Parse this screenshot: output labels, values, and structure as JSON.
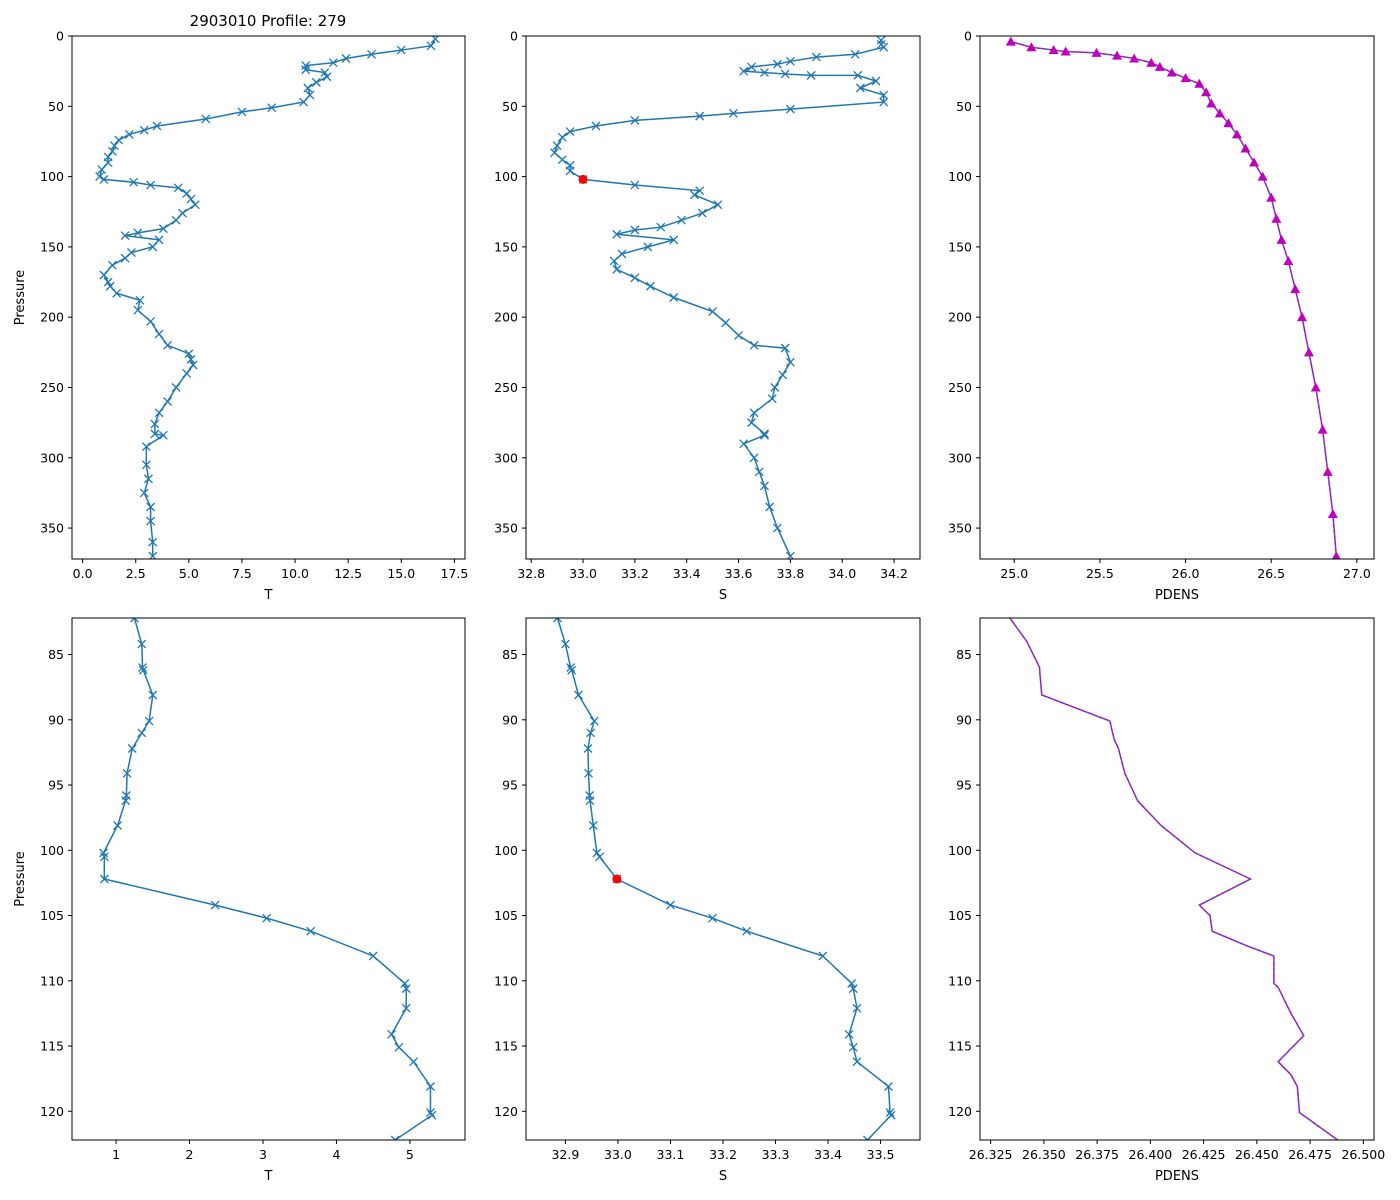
{
  "figure_title": "2903010 Profile: 279",
  "colors": {
    "series": "#1f77b4",
    "density": "#bf00bf",
    "highlight": "#ff0000",
    "density_dash": "#1f77b4"
  },
  "chart_data": [
    {
      "id": "top-temperature",
      "type": "line",
      "xlabel": "T",
      "ylabel": "Pressure",
      "xlim": [
        -0.5,
        18
      ],
      "ylim": [
        372,
        0
      ],
      "xticks": [
        0.0,
        2.5,
        5.0,
        7.5,
        10.0,
        12.5,
        15.0,
        17.5
      ],
      "xtick_labels": [
        "0.0",
        "2.5",
        "5.0",
        "7.5",
        "10.0",
        "12.5",
        "15.0",
        "17.5"
      ],
      "yticks": [
        0,
        50,
        100,
        150,
        200,
        250,
        300,
        350
      ],
      "ytick_labels": [
        "0",
        "50",
        "100",
        "150",
        "200",
        "250",
        "300",
        "350"
      ],
      "marker": "x",
      "x": [
        16.6,
        16.4,
        15.0,
        13.6,
        12.4,
        11.8,
        10.5,
        10.5,
        11.4,
        11.5,
        11.0,
        10.6,
        10.7,
        10.4,
        8.9,
        7.5,
        5.8,
        3.5,
        2.9,
        2.2,
        1.7,
        1.5,
        1.4,
        1.2,
        1.2,
        0.9,
        0.8,
        1.0,
        2.4,
        3.2,
        4.5,
        4.9,
        5.1,
        5.3,
        4.7,
        4.4,
        3.8,
        2.6,
        2.0,
        3.6,
        3.3,
        2.3,
        2.0,
        1.4,
        1.0,
        1.2,
        1.3,
        1.6,
        2.7,
        2.6,
        3.2,
        3.6,
        4.0,
        5.0,
        5.1,
        5.2,
        4.9,
        4.4,
        4.0,
        3.6,
        3.4,
        3.4,
        3.8,
        3.0,
        3.0,
        3.1,
        2.9,
        3.2,
        3.2,
        3.3,
        3.3
      ],
      "y": [
        2,
        7,
        10,
        13,
        16,
        19,
        21,
        24,
        26,
        29,
        33,
        37,
        42,
        47,
        51,
        54,
        59,
        64,
        67,
        70,
        74,
        78,
        82,
        86,
        90,
        95,
        100,
        102,
        104,
        106,
        108,
        112,
        116,
        120,
        126,
        131,
        137,
        140,
        142,
        145,
        150,
        154,
        158,
        163,
        170,
        175,
        178,
        183,
        188,
        195,
        203,
        212,
        220,
        226,
        230,
        234,
        240,
        250,
        260,
        268,
        276,
        283,
        284,
        292,
        305,
        315,
        325,
        335,
        345,
        360,
        370
      ]
    },
    {
      "id": "top-salinity",
      "type": "line",
      "xlabel": "S",
      "ylabel": "",
      "xlim": [
        32.78,
        34.3
      ],
      "ylim": [
        372,
        0
      ],
      "xticks": [
        32.8,
        33.0,
        33.2,
        33.4,
        33.6,
        33.8,
        34.0,
        34.2
      ],
      "xtick_labels": [
        "32.8",
        "33.0",
        "33.2",
        "33.4",
        "33.6",
        "33.8",
        "34.0",
        "34.2"
      ],
      "yticks": [
        0,
        50,
        100,
        150,
        200,
        250,
        300,
        350
      ],
      "ytick_labels": [
        "0",
        "50",
        "100",
        "150",
        "200",
        "250",
        "300",
        "350"
      ],
      "marker": "x",
      "x": [
        34.15,
        34.15,
        34.16,
        34.05,
        33.9,
        33.8,
        33.75,
        33.65,
        33.62,
        33.7,
        33.78,
        33.88,
        34.06,
        34.13,
        34.07,
        34.16,
        34.16,
        33.8,
        33.58,
        33.45,
        33.2,
        33.05,
        32.95,
        32.92,
        32.9,
        32.89,
        32.92,
        32.95,
        32.95,
        33.0,
        33.2,
        33.45,
        33.43,
        33.52,
        33.46,
        33.38,
        33.3,
        33.2,
        33.13,
        33.35,
        33.25,
        33.15,
        33.12,
        33.13,
        33.2,
        33.26,
        33.35,
        33.5,
        33.55,
        33.6,
        33.66,
        33.78,
        33.8,
        33.77,
        33.74,
        33.73,
        33.66,
        33.65,
        33.7,
        33.7,
        33.62,
        33.66,
        33.68,
        33.7,
        33.72,
        33.75,
        33.8
      ],
      "y": [
        3,
        6,
        8,
        13,
        15,
        18,
        20,
        22,
        25,
        26,
        27,
        28,
        28,
        32,
        37,
        42,
        47,
        52,
        55,
        57,
        60,
        64,
        68,
        72,
        78,
        83,
        88,
        92,
        96,
        102,
        106,
        110,
        113,
        120,
        126,
        131,
        136,
        138,
        141,
        145,
        150,
        155,
        160,
        166,
        172,
        178,
        186,
        196,
        204,
        213,
        220,
        222,
        232,
        241,
        250,
        258,
        268,
        275,
        283,
        284,
        290,
        300,
        310,
        320,
        335,
        350,
        370
      ],
      "highlight_point": {
        "x": 33.0,
        "y": 102
      }
    },
    {
      "id": "top-density",
      "type": "line",
      "xlabel": "PDENS",
      "ylabel": "",
      "xlim": [
        24.8,
        27.1
      ],
      "ylim": [
        372,
        0
      ],
      "xticks": [
        25.0,
        25.5,
        26.0,
        26.5,
        27.0
      ],
      "xtick_labels": [
        "25.0",
        "25.5",
        "26.0",
        "26.5",
        "27.0"
      ],
      "yticks": [
        0,
        50,
        100,
        150,
        200,
        250,
        300,
        350
      ],
      "ytick_labels": [
        "0",
        "50",
        "100",
        "150",
        "200",
        "250",
        "300",
        "350"
      ],
      "marker": "triangle",
      "x": [
        24.98,
        25.1,
        25.23,
        25.3,
        25.48,
        25.6,
        25.7,
        25.8,
        25.85,
        25.92,
        26.0,
        26.08,
        26.12,
        26.15,
        26.2,
        26.25,
        26.3,
        26.35,
        26.4,
        26.45,
        26.5,
        26.53,
        26.56,
        26.6,
        26.64,
        26.68,
        26.72,
        26.76,
        26.8,
        26.83,
        26.86,
        26.88
      ],
      "y": [
        4,
        8,
        10,
        11,
        12,
        14,
        16,
        19,
        22,
        26,
        30,
        34,
        40,
        48,
        55,
        62,
        70,
        80,
        90,
        100,
        115,
        130,
        145,
        160,
        180,
        200,
        225,
        250,
        280,
        310,
        340,
        370
      ]
    },
    {
      "id": "bottom-temperature",
      "type": "line",
      "xlabel": "T",
      "ylabel": "Pressure",
      "xlim": [
        0.4,
        5.75
      ],
      "ylim": [
        122.2,
        82.2
      ],
      "xticks": [
        1,
        2,
        3,
        4,
        5
      ],
      "xtick_labels": [
        "1",
        "2",
        "3",
        "4",
        "5"
      ],
      "yticks": [
        85,
        90,
        95,
        100,
        105,
        110,
        115,
        120
      ],
      "ytick_labels": [
        "85",
        "90",
        "95",
        "100",
        "105",
        "110",
        "115",
        "120"
      ],
      "marker": "x",
      "x": [
        1.25,
        1.35,
        1.36,
        1.37,
        1.5,
        1.45,
        1.35,
        1.22,
        1.15,
        1.14,
        1.13,
        1.02,
        0.83,
        0.84,
        0.84,
        2.35,
        3.05,
        3.65,
        4.5,
        4.93,
        4.95,
        4.95,
        4.75,
        4.85,
        5.05,
        5.28,
        5.28,
        5.3,
        4.8
      ],
      "y": [
        82.2,
        84.2,
        86.0,
        86.2,
        88.1,
        90.1,
        91.0,
        92.2,
        94.1,
        95.8,
        96.2,
        98.1,
        100.2,
        100.5,
        102.2,
        104.2,
        105.2,
        106.2,
        108.1,
        110.2,
        110.6,
        112.1,
        114.1,
        115.1,
        116.2,
        118.1,
        120.1,
        120.3,
        122.2
      ]
    },
    {
      "id": "bottom-salinity",
      "type": "line",
      "xlabel": "S",
      "ylabel": "",
      "xlim": [
        32.825,
        33.575
      ],
      "ylim": [
        122.2,
        82.2
      ],
      "xticks": [
        32.9,
        33.0,
        33.1,
        33.2,
        33.3,
        33.4,
        33.5
      ],
      "xtick_labels": [
        "32.9",
        "33.0",
        "33.1",
        "33.2",
        "33.3",
        "33.4",
        "33.5"
      ],
      "yticks": [
        85,
        90,
        95,
        100,
        105,
        110,
        115,
        120
      ],
      "ytick_labels": [
        "85",
        "90",
        "95",
        "100",
        "105",
        "110",
        "115",
        "120"
      ],
      "marker": "x",
      "x": [
        32.885,
        32.9,
        32.91,
        32.912,
        32.925,
        32.955,
        32.948,
        32.943,
        32.944,
        32.946,
        32.947,
        32.953,
        32.96,
        32.965,
        32.998,
        33.1,
        33.18,
        33.245,
        33.39,
        33.445,
        33.448,
        33.455,
        33.44,
        33.448,
        33.455,
        33.515,
        33.518,
        33.52,
        33.475
      ],
      "y": [
        82.2,
        84.2,
        86.0,
        86.2,
        88.1,
        90.1,
        91.0,
        92.2,
        94.1,
        95.8,
        96.2,
        98.1,
        100.2,
        100.5,
        102.2,
        104.2,
        105.2,
        106.2,
        108.1,
        110.2,
        110.6,
        112.1,
        114.1,
        115.1,
        116.2,
        118.1,
        120.1,
        120.3,
        122.2
      ],
      "highlight_point": {
        "x": 32.998,
        "y": 102.2
      }
    },
    {
      "id": "bottom-density",
      "type": "line",
      "xlabel": "PDENS",
      "ylabel": "",
      "xlim": [
        26.32,
        26.505
      ],
      "ylim": [
        122.2,
        82.2
      ],
      "xticks": [
        26.325,
        26.35,
        26.375,
        26.4,
        26.425,
        26.45,
        26.475,
        26.5
      ],
      "xtick_labels": [
        "26.325",
        "26.350",
        "26.375",
        "26.400",
        "26.425",
        "26.450",
        "26.475",
        "26.500"
      ],
      "yticks": [
        85,
        90,
        95,
        100,
        105,
        110,
        115,
        120
      ],
      "ytick_labels": [
        "85",
        "90",
        "95",
        "100",
        "105",
        "110",
        "115",
        "120"
      ],
      "marker": "none",
      "x": [
        26.334,
        26.342,
        26.348,
        26.348,
        26.349,
        26.381,
        26.383,
        26.385,
        26.388,
        26.392,
        26.394,
        26.405,
        26.421,
        26.447,
        26.423,
        26.428,
        26.429,
        26.445,
        26.458,
        26.458,
        26.46,
        26.466,
        26.472,
        26.46,
        26.466,
        26.469,
        26.47,
        26.488
      ],
      "y": [
        82.2,
        84.0,
        86.0,
        86.2,
        88.1,
        90.1,
        91.5,
        92.2,
        94.1,
        95.5,
        96.2,
        98.1,
        100.2,
        102.2,
        104.2,
        105.0,
        106.2,
        107.3,
        108.1,
        110.2,
        110.5,
        112.5,
        114.2,
        116.2,
        117.2,
        118.1,
        120.1,
        122.2
      ]
    }
  ]
}
